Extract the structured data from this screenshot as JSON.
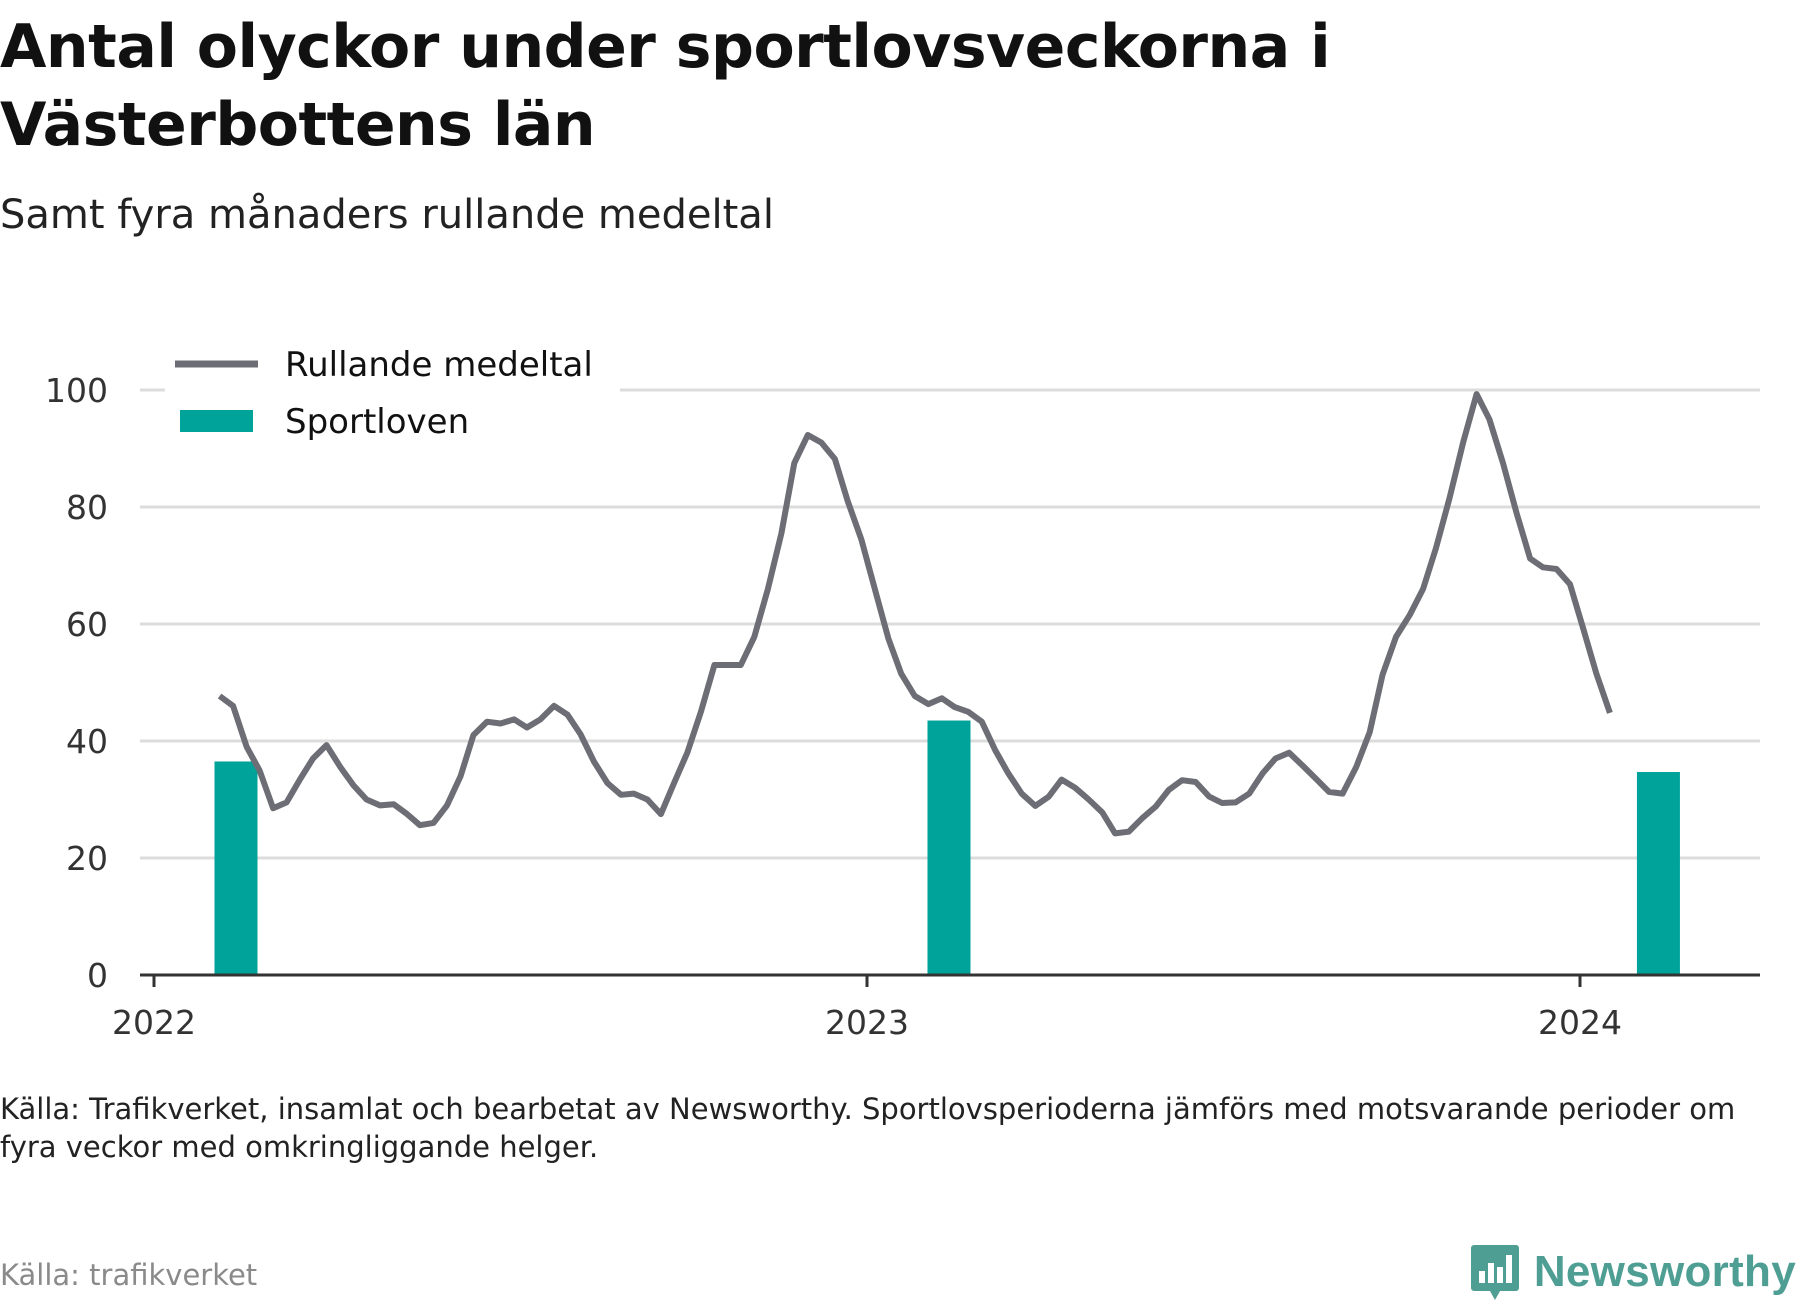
{
  "title": "Antal olyckor under sportlovsveckorna i Västerbottens län",
  "subtitle": "Samt fyra månaders rullande medeltal",
  "note": "Källa: Trafikverket, insamlat och bearbetat av Newsworthy. Sportlovsperioderna jämförs med motsvarande perioder om fyra veckor med omkringliggande helger.",
  "source": "Källa: trafikverket",
  "brand": {
    "name": "Newsworthy",
    "icon": "newsworthy-logo-icon",
    "color": "#4f9e94"
  },
  "chart_data": {
    "type": "bar+line",
    "ylim": [
      0,
      100
    ],
    "yticks": [
      0,
      20,
      40,
      60,
      80,
      100
    ],
    "ytick_labels": [
      "0",
      "20",
      "40",
      "60",
      "80",
      "100"
    ],
    "xlim": [
      2022.0,
      2024.25
    ],
    "xticks": [
      2022,
      2023,
      2024
    ],
    "xtick_labels": [
      "2022",
      "2023",
      "2024"
    ],
    "grid": "horizontal",
    "legend_position": "top-left",
    "legend": [
      {
        "label": "Rullande medeltal",
        "kind": "line",
        "color": "#6d6d75"
      },
      {
        "label": "Sportloven",
        "kind": "bar",
        "color": "#00a39a"
      }
    ],
    "bars": {
      "name": "Sportloven",
      "color": "#00a39a",
      "x": [
        2022.115,
        2023.115,
        2024.11
      ],
      "values": [
        36.5,
        43.5,
        34.7
      ]
    },
    "line": {
      "name": "Rullande medeltal",
      "color": "#6d6d75",
      "points": [
        [
          2022.092,
          47.7
        ],
        [
          2022.111,
          46.0
        ],
        [
          2022.13,
          39.0
        ],
        [
          2022.148,
          35.0
        ],
        [
          2022.167,
          28.5
        ],
        [
          2022.186,
          29.5
        ],
        [
          2022.205,
          33.5
        ],
        [
          2022.223,
          37.0
        ],
        [
          2022.242,
          39.3
        ],
        [
          2022.261,
          35.6
        ],
        [
          2022.28,
          32.4
        ],
        [
          2022.298,
          30.0
        ],
        [
          2022.317,
          29.0
        ],
        [
          2022.336,
          29.2
        ],
        [
          2022.355,
          27.5
        ],
        [
          2022.373,
          25.6
        ],
        [
          2022.392,
          26.0
        ],
        [
          2022.411,
          29.0
        ],
        [
          2022.43,
          34.0
        ],
        [
          2022.448,
          41.0
        ],
        [
          2022.467,
          43.3
        ],
        [
          2022.486,
          43.0
        ],
        [
          2022.505,
          43.7
        ],
        [
          2022.523,
          42.3
        ],
        [
          2022.542,
          43.7
        ],
        [
          2022.561,
          46.0
        ],
        [
          2022.58,
          44.5
        ],
        [
          2022.598,
          41.2
        ],
        [
          2022.617,
          36.5
        ],
        [
          2022.636,
          32.8
        ],
        [
          2022.655,
          30.8
        ],
        [
          2022.673,
          31.0
        ],
        [
          2022.692,
          30.0
        ],
        [
          2022.711,
          27.5
        ],
        [
          2022.73,
          33.0
        ],
        [
          2022.748,
          38.0
        ],
        [
          2022.767,
          45.0
        ],
        [
          2022.786,
          53.0
        ],
        [
          2022.805,
          53.0
        ],
        [
          2022.823,
          53.0
        ],
        [
          2022.842,
          57.8
        ],
        [
          2022.861,
          66.0
        ],
        [
          2022.88,
          75.5
        ],
        [
          2022.898,
          87.5
        ],
        [
          2022.917,
          92.3
        ],
        [
          2022.936,
          91.0
        ],
        [
          2022.955,
          88.2
        ],
        [
          2022.973,
          81.0
        ],
        [
          2022.992,
          74.5
        ],
        [
          2023.011,
          66.0
        ],
        [
          2023.03,
          57.5
        ],
        [
          2023.048,
          51.5
        ],
        [
          2023.067,
          47.7
        ],
        [
          2023.086,
          46.3
        ],
        [
          2023.105,
          47.3
        ],
        [
          2023.123,
          45.8
        ],
        [
          2023.142,
          45.0
        ],
        [
          2023.161,
          43.3
        ],
        [
          2023.18,
          38.4
        ],
        [
          2023.198,
          34.5
        ],
        [
          2023.217,
          31.0
        ],
        [
          2023.236,
          28.9
        ],
        [
          2023.255,
          30.5
        ],
        [
          2023.273,
          33.4
        ],
        [
          2023.292,
          32.0
        ],
        [
          2023.311,
          30.0
        ],
        [
          2023.33,
          27.8
        ],
        [
          2023.348,
          24.2
        ],
        [
          2023.367,
          24.5
        ],
        [
          2023.386,
          26.8
        ],
        [
          2023.405,
          28.8
        ],
        [
          2023.423,
          31.6
        ],
        [
          2023.442,
          33.3
        ],
        [
          2023.461,
          33.0
        ],
        [
          2023.48,
          30.5
        ],
        [
          2023.498,
          29.4
        ],
        [
          2023.517,
          29.5
        ],
        [
          2023.536,
          31.0
        ],
        [
          2023.555,
          34.5
        ],
        [
          2023.573,
          37.0
        ],
        [
          2023.592,
          38.0
        ],
        [
          2023.611,
          35.8
        ],
        [
          2023.63,
          33.5
        ],
        [
          2023.648,
          31.3
        ],
        [
          2023.667,
          31.0
        ],
        [
          2023.686,
          35.5
        ],
        [
          2023.705,
          41.5
        ],
        [
          2023.723,
          51.3
        ],
        [
          2023.742,
          57.8
        ],
        [
          2023.761,
          61.5
        ],
        [
          2023.78,
          66.0
        ],
        [
          2023.798,
          73.0
        ],
        [
          2023.817,
          81.5
        ],
        [
          2023.836,
          91.0
        ],
        [
          2023.855,
          99.3
        ],
        [
          2023.873,
          95.0
        ],
        [
          2023.892,
          87.5
        ],
        [
          2023.911,
          79.0
        ],
        [
          2023.93,
          71.2
        ],
        [
          2023.948,
          69.7
        ],
        [
          2023.967,
          69.4
        ],
        [
          2023.986,
          66.8
        ],
        [
          2024.005,
          59.0
        ],
        [
          2024.023,
          51.5
        ],
        [
          2024.042,
          44.8
        ]
      ]
    }
  }
}
